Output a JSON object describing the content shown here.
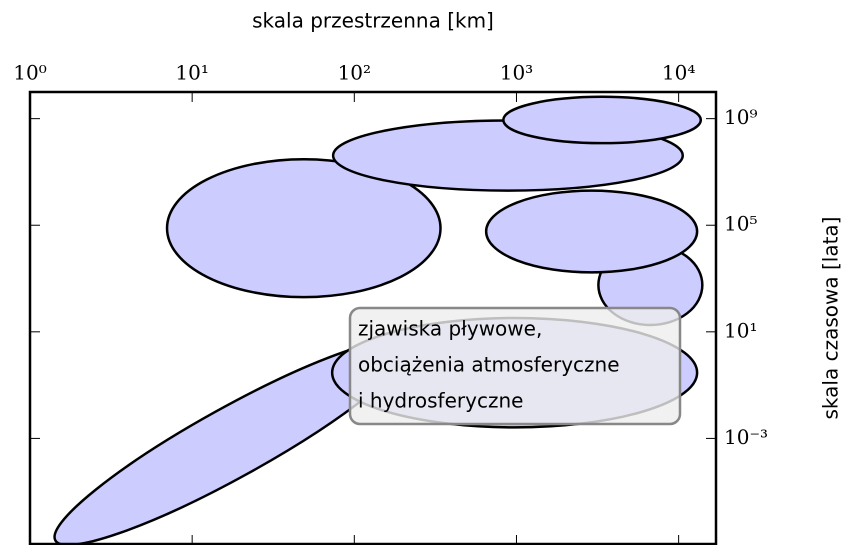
{
  "chart_data": {
    "type": "ellipse",
    "xlabel": "skala przestrzenna [km]",
    "ylabel": "skala czasowa [lata]",
    "xscale": "log",
    "yscale": "log",
    "xlim": [
      1,
      17000
    ],
    "ylim": [
      1e-07,
      10000000000.0
    ],
    "xticks": [
      {
        "value": 1,
        "label": "10⁰"
      },
      {
        "value": 10,
        "label": "10¹"
      },
      {
        "value": 100,
        "label": "10²"
      },
      {
        "value": 1000,
        "label": "10³"
      },
      {
        "value": 10000,
        "label": "10⁴"
      }
    ],
    "yticks": [
      {
        "value": 0.001,
        "label": "10⁻³"
      },
      {
        "value": 10,
        "label": "10¹"
      },
      {
        "value": 100000,
        "label": "10⁵"
      },
      {
        "value": 1000000000,
        "label": "10⁹"
      }
    ],
    "color": "#ccccff",
    "ellipses": [
      {
        "x": [
          1,
          312
        ],
        "y": [
          3.5e-05,
          0.0145
        ],
        "angle": -29
      },
      {
        "x": [
          73,
          13000
        ],
        "y": [
          0.0026,
          33
        ],
        "angle": 0
      },
      {
        "x": [
          3200,
          14000
        ],
        "y": [
          18,
          18000
        ],
        "angle": 0
      },
      {
        "x": [
          650,
          13000
        ],
        "y": [
          1700,
          2000000
        ],
        "angle": 0
      },
      {
        "x": [
          7,
          340
        ],
        "y": [
          200,
          30000000
        ],
        "angle": 0
      },
      {
        "x": [
          74,
          10600
        ],
        "y": [
          2000000,
          850000000
        ],
        "angle": 0
      },
      {
        "x": [
          830,
          13700
        ],
        "y": [
          120000000,
          6600000000
        ],
        "angle": 0
      }
    ],
    "annotation": [
      "zjawiska pływowe,",
      "obciążenia atmosferyczne",
      "i hydrosferyczne"
    ]
  }
}
